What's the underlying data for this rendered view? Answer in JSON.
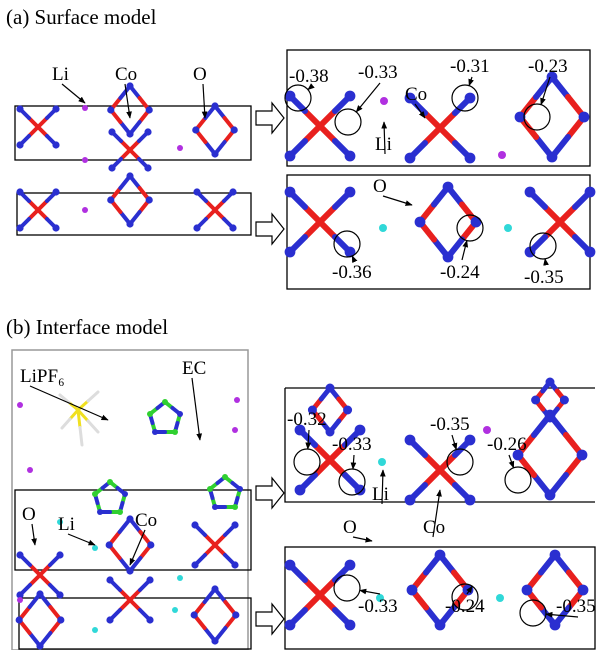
{
  "panels": [
    {
      "title": "(a) Surface model",
      "structure_labels": [
        "Li",
        "Co",
        "O"
      ],
      "top_detail": {
        "atom_labels": [
          "Co",
          "Li"
        ],
        "charges": [
          "-0.38",
          "-0.33",
          "-0.31",
          "-0.23"
        ]
      },
      "bottom_detail": {
        "atom_labels": [
          "O"
        ],
        "charges": [
          "-0.36",
          "-0.24",
          "-0.35"
        ]
      }
    },
    {
      "title": "(b) Interface model",
      "structure_labels": [
        "LiPF₆",
        "EC",
        "O",
        "Li",
        "Co"
      ],
      "top_detail": {
        "atom_labels": [
          "Li",
          "Co"
        ],
        "charges": [
          "-0.32",
          "-0.33",
          "-0.35",
          "-0.26"
        ]
      },
      "bottom_detail": {
        "atom_labels": [
          "O"
        ],
        "charges": [
          "-0.33",
          "-0.24",
          "-0.35"
        ]
      }
    }
  ]
}
